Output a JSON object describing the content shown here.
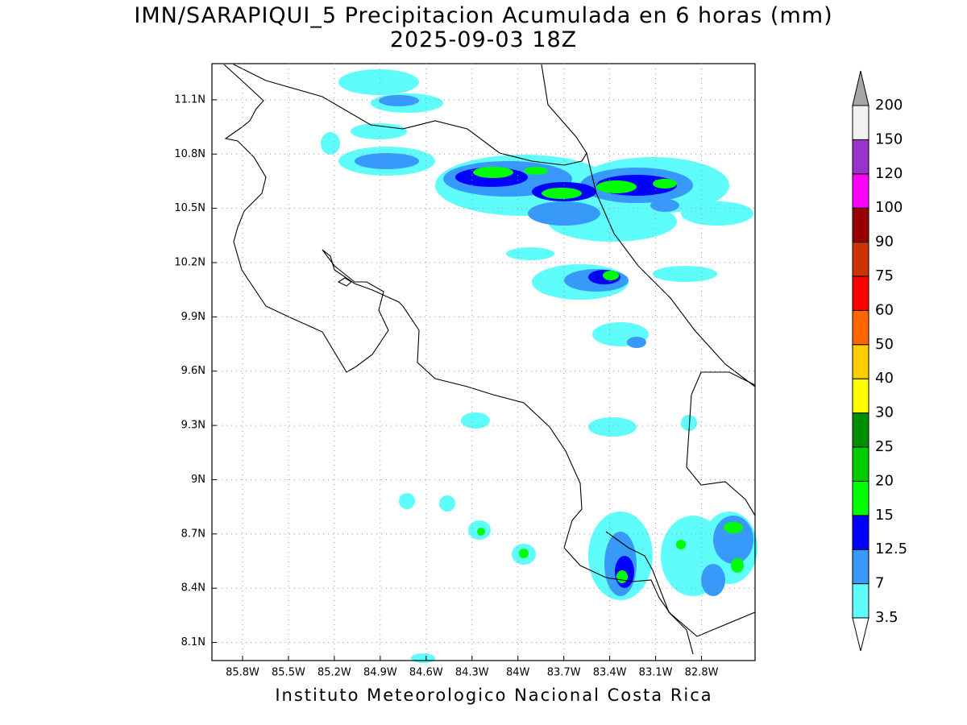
{
  "title": "IMN/SARAPIQUI_5 Precipitacion Acumulada en 6 horas (mm)",
  "subtitle": "2025-09-03 18Z",
  "footer": "Instituto Meteorologico Nacional Costa Rica",
  "map": {
    "xlim": [
      -86.0,
      -82.45
    ],
    "ylim": [
      8.0,
      11.3
    ],
    "grid": true,
    "xticks": [
      {
        "value": -85.8,
        "label": "85.8W"
      },
      {
        "value": -85.5,
        "label": "85.5W"
      },
      {
        "value": -85.2,
        "label": "85.2W"
      },
      {
        "value": -84.9,
        "label": "84.9W"
      },
      {
        "value": -84.6,
        "label": "84.6W"
      },
      {
        "value": -84.3,
        "label": "84.3W"
      },
      {
        "value": -84.0,
        "label": "84W"
      },
      {
        "value": -83.7,
        "label": "83.7W"
      },
      {
        "value": -83.4,
        "label": "83.4W"
      },
      {
        "value": -83.1,
        "label": "83.1W"
      },
      {
        "value": -82.8,
        "label": "82.8W"
      }
    ],
    "yticks": [
      {
        "value": 8.1,
        "label": "8.1N"
      },
      {
        "value": 8.4,
        "label": "8.4N"
      },
      {
        "value": 8.7,
        "label": "8.7N"
      },
      {
        "value": 9.0,
        "label": "9N"
      },
      {
        "value": 9.3,
        "label": "9.3N"
      },
      {
        "value": 9.6,
        "label": "9.6N"
      },
      {
        "value": 9.9,
        "label": "9.9N"
      },
      {
        "value": 10.2,
        "label": "10.2N"
      },
      {
        "value": 10.5,
        "label": "10.5N"
      },
      {
        "value": 10.8,
        "label": "10.8N"
      },
      {
        "value": 11.1,
        "label": "11.1N"
      }
    ],
    "colorbar": {
      "levels": [
        3.5,
        7,
        12.5,
        15,
        20,
        25,
        30,
        40,
        50,
        60,
        75,
        90,
        100,
        120,
        150,
        200
      ],
      "colors": [
        "#5ffcfc",
        "#3799fa",
        "#0000ff",
        "#00ff00",
        "#00cc00",
        "#008f00",
        "#ffff00",
        "#ffcc00",
        "#ff6600",
        "#ff0000",
        "#cc3300",
        "#990000",
        "#ff00ff",
        "#9933cc",
        "#f2f2f2"
      ],
      "under_color": "#ffffff",
      "over_color": "#a6a6a6"
    }
  }
}
